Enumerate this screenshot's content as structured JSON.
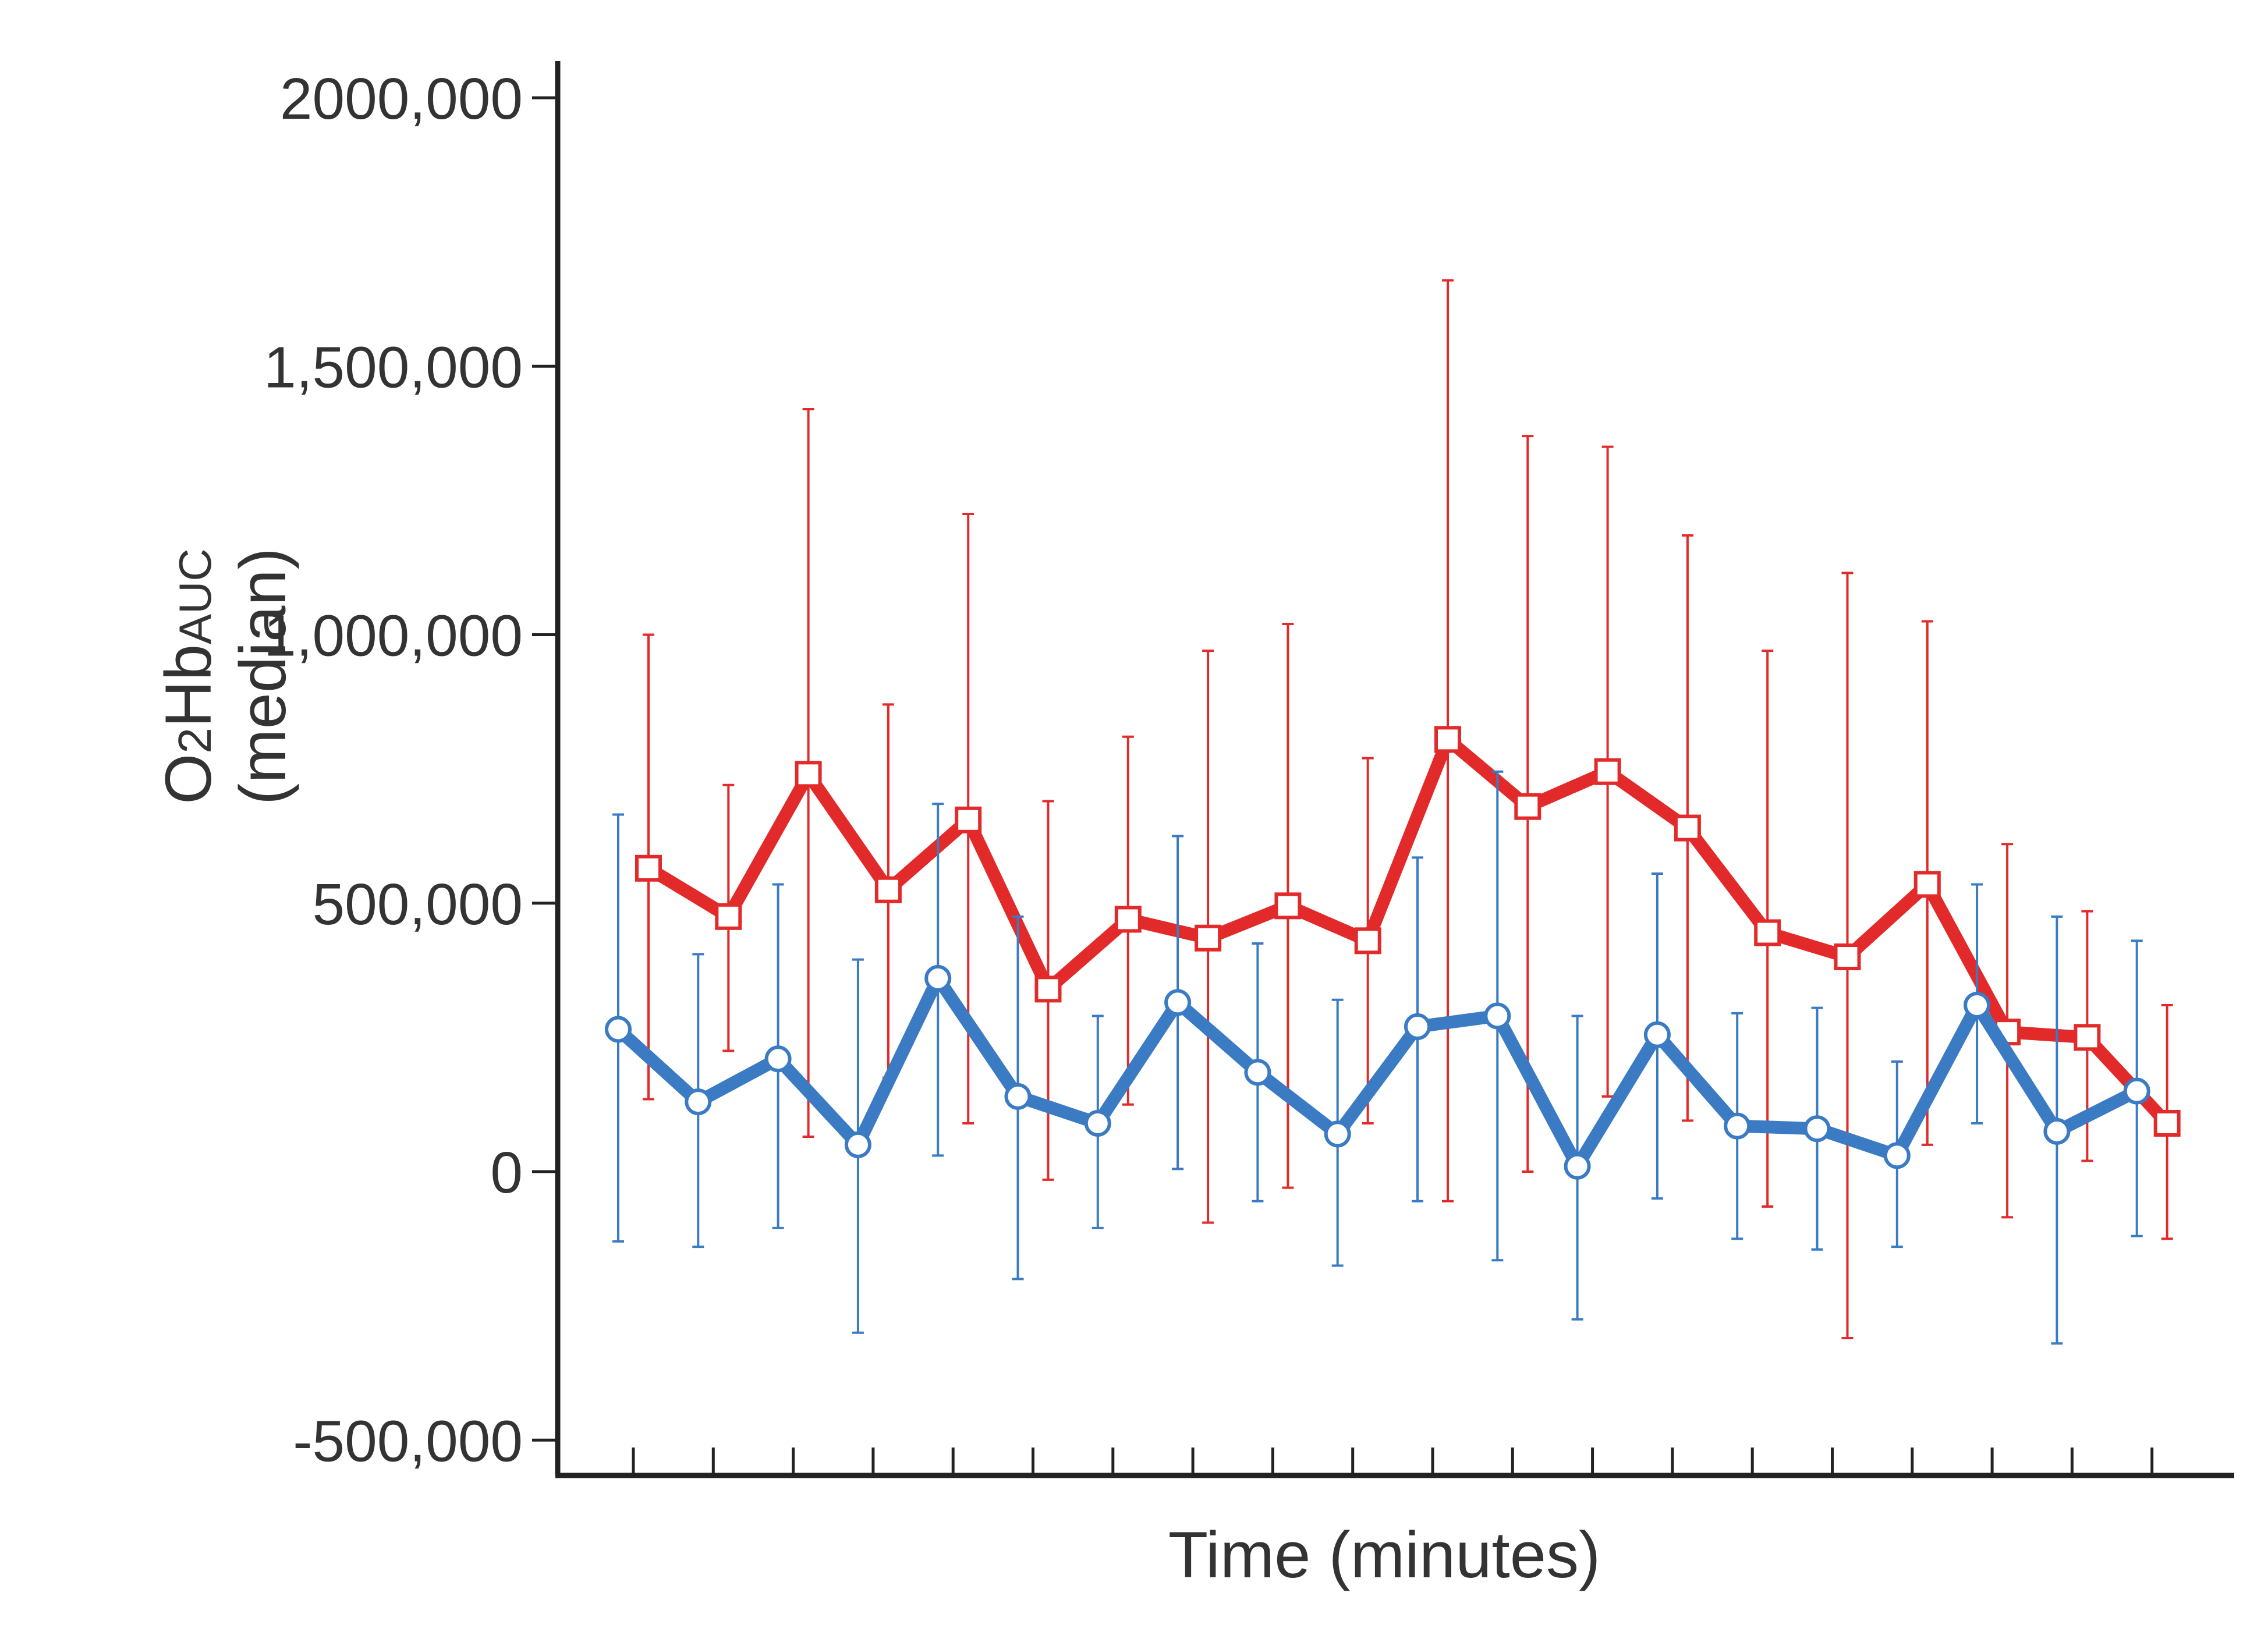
{
  "chart_data": {
    "type": "line",
    "xlabel": "Time (minutes)",
    "ylabel": {
      "main": "O",
      "sub": "2",
      "main2": "Hb",
      "small": "AUC",
      "line2": "(median)"
    },
    "ylim": [
      -500000,
      2000000
    ],
    "yticks": [
      -500000,
      0,
      500000,
      1000000,
      1500000,
      2000000
    ],
    "ytick_labels": [
      "-500,000",
      "0",
      "500,000",
      "1,000,000",
      "1,500,000",
      "2000,000"
    ],
    "x_tick_count": 20,
    "grid": false,
    "legend": "none",
    "series": [
      {
        "color": "#e32a2a",
        "marker": "square",
        "x": [
          1,
          2,
          3,
          4,
          5,
          6,
          7,
          8,
          9,
          10,
          11,
          12,
          13,
          14,
          15,
          16,
          17,
          18,
          19,
          20
        ],
        "values": [
          565000,
          475000,
          740000,
          525000,
          655000,
          340000,
          470000,
          435000,
          495000,
          430000,
          805000,
          680000,
          745000,
          640000,
          445000,
          400000,
          535000,
          260000,
          250000,
          90000
        ],
        "upper": [
          1000000,
          720000,
          1420000,
          870000,
          1225000,
          690000,
          810000,
          970000,
          1020000,
          770000,
          1660000,
          1370000,
          1350000,
          1185000,
          970000,
          1115000,
          1025000,
          610000,
          485000,
          310000
        ],
        "lower": [
          135000,
          225000,
          65000,
          175000,
          90000,
          -15000,
          125000,
          -95000,
          -30000,
          90000,
          -55000,
          0,
          140000,
          95000,
          -65000,
          -310000,
          50000,
          -85000,
          20000,
          -125000
        ]
      },
      {
        "color": "#3a7bc4",
        "marker": "circle",
        "x": [
          1,
          2,
          3,
          4,
          5,
          6,
          7,
          8,
          9,
          10,
          11,
          12,
          13,
          14,
          15,
          16,
          17,
          18,
          19,
          20
        ],
        "values": [
          265000,
          130000,
          210000,
          50000,
          360000,
          140000,
          90000,
          315000,
          185000,
          70000,
          270000,
          290000,
          10000,
          255000,
          85000,
          80000,
          30000,
          310000,
          75000,
          150000
        ],
        "upper": [
          665000,
          405000,
          535000,
          395000,
          685000,
          475000,
          290000,
          625000,
          425000,
          320000,
          585000,
          745000,
          290000,
          555000,
          295000,
          305000,
          205000,
          535000,
          475000,
          430000
        ],
        "lower": [
          -130000,
          -140000,
          -105000,
          -300000,
          30000,
          -200000,
          -105000,
          5000,
          -55000,
          -175000,
          -55000,
          -165000,
          -275000,
          -50000,
          -125000,
          -145000,
          -140000,
          90000,
          -320000,
          -120000
        ]
      }
    ]
  }
}
